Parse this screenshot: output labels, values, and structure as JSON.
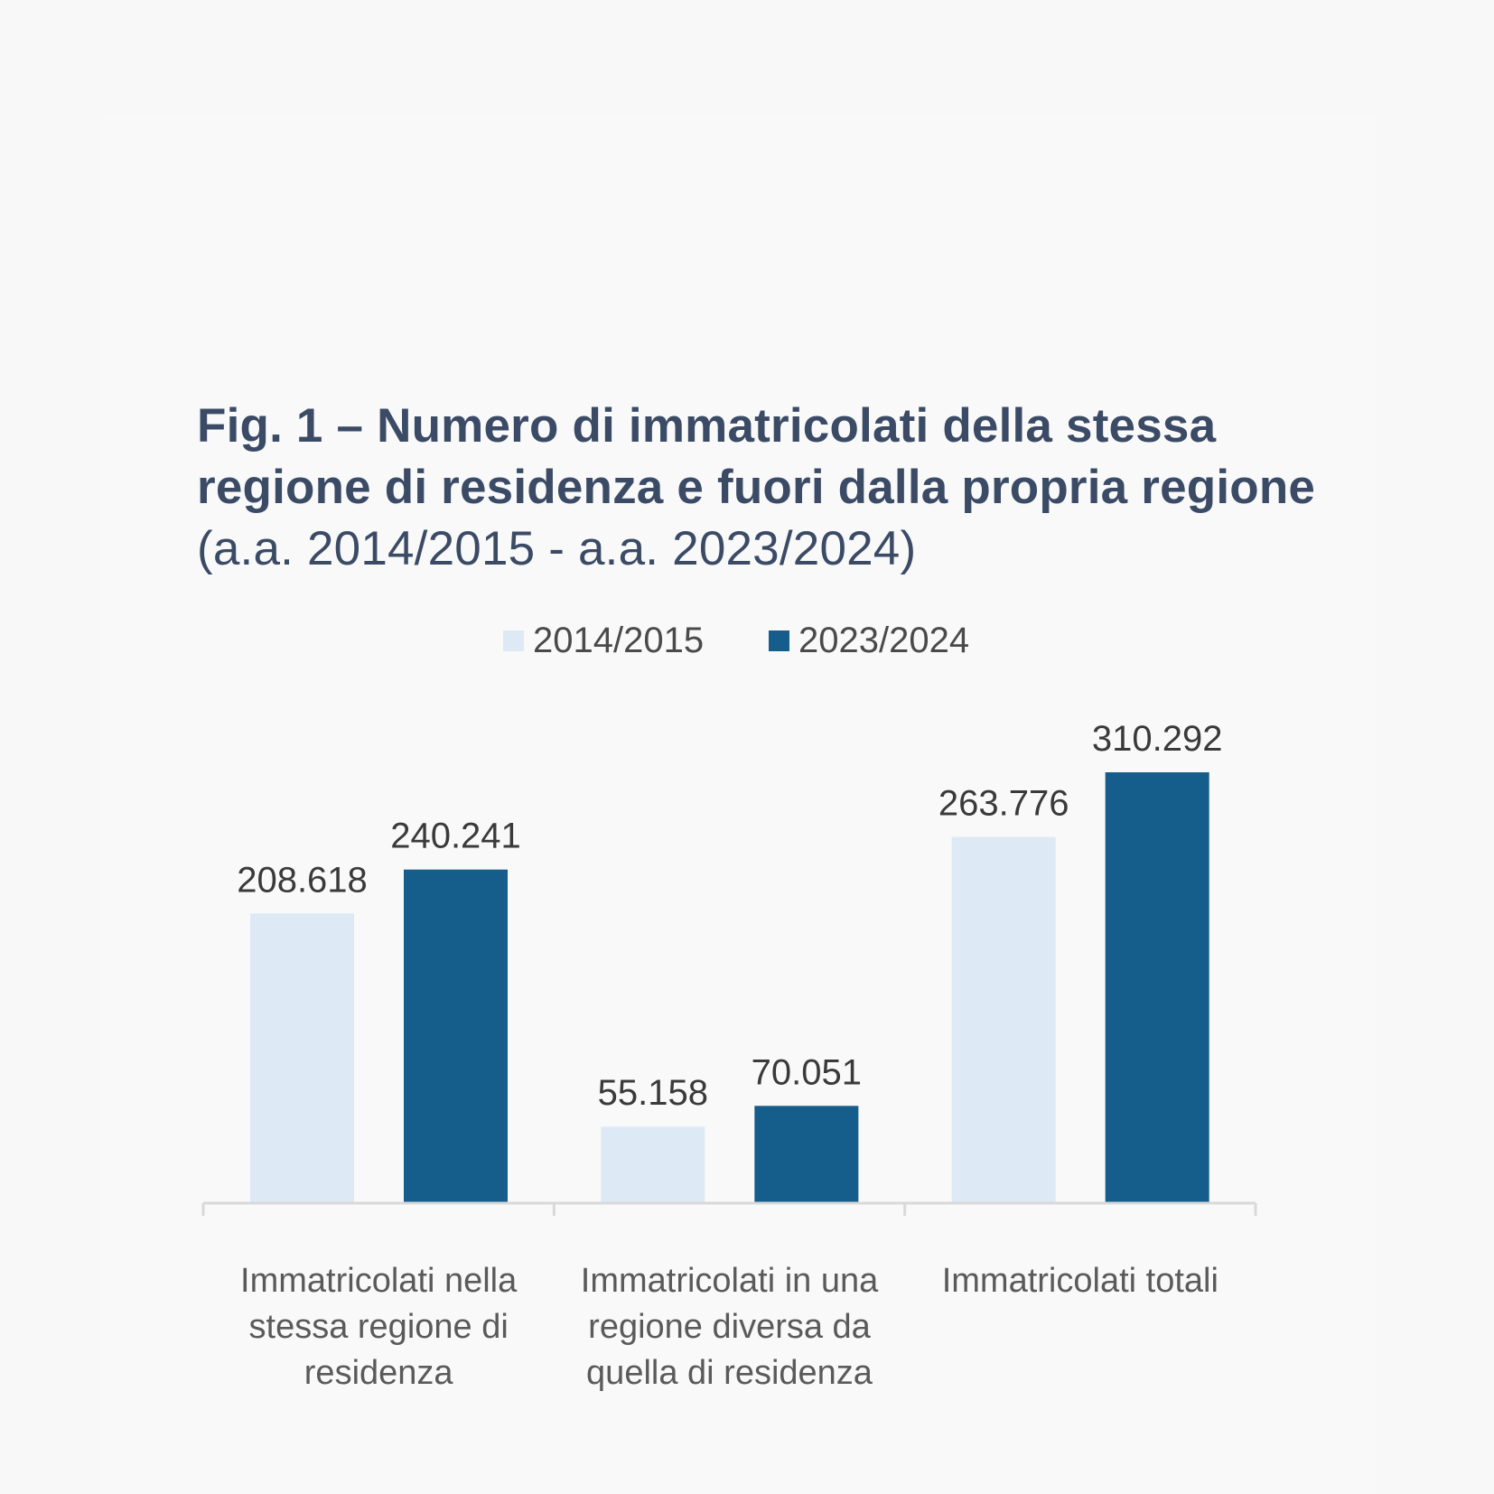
{
  "chart_data": {
    "type": "bar",
    "title": "Fig. 1 – Numero di immatricolati della stessa regione di residenza e fuori dalla propria regione",
    "subtitle": "(a.a. 2014/2015 - a.a. 2023/2024)",
    "categories": [
      "Immatricolati nella stessa regione di residenza",
      "Immatricolati in una regione diversa da quella di residenza",
      "Immatricolati totali"
    ],
    "category_lines": [
      [
        "Immatricolati nella",
        "stessa regione di",
        "residenza"
      ],
      [
        "Immatricolati in una",
        "regione diversa da",
        "quella di residenza"
      ],
      [
        "Immatricolati totali"
      ]
    ],
    "series": [
      {
        "name": "2014/2015",
        "color": "#ddeaf6",
        "values": [
          208618,
          55158,
          263776
        ],
        "labels": [
          "208.618",
          "55.158",
          "263.776"
        ]
      },
      {
        "name": "2023/2024",
        "color": "#155d8a",
        "values": [
          240241,
          70051,
          310292
        ],
        "labels": [
          "240.241",
          "70.051",
          "310.292"
        ]
      }
    ],
    "ylim": [
      0,
      350000
    ],
    "xlabel": "",
    "ylabel": "",
    "grid": false,
    "legend_position": "top"
  }
}
